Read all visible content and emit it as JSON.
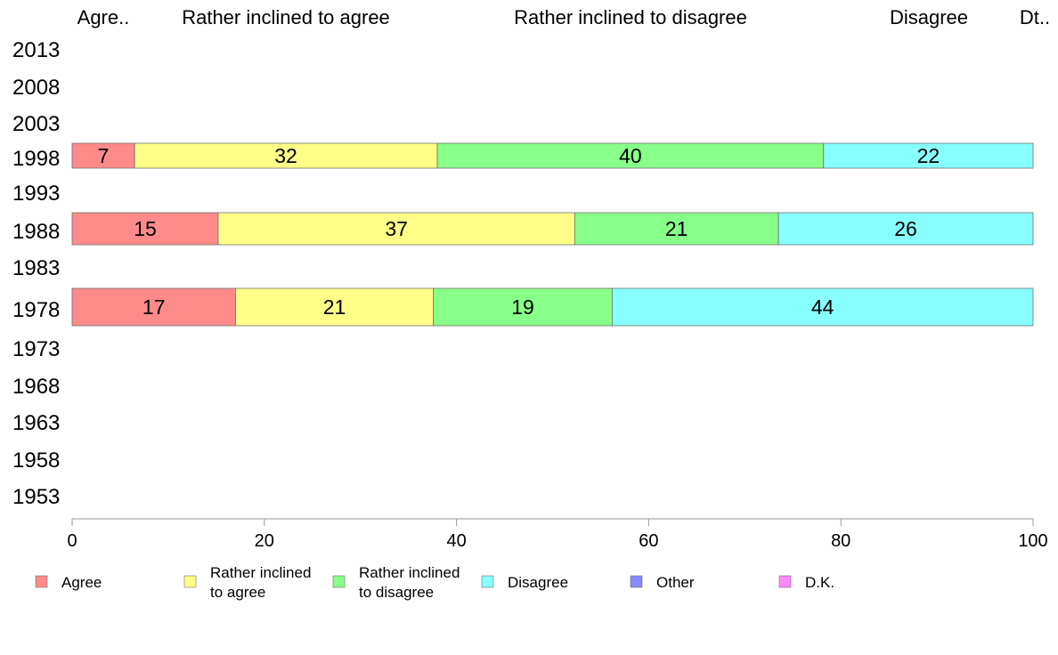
{
  "chart_data": {
    "type": "bar",
    "orientation": "horizontal",
    "stacked": true,
    "top_labels": [
      "Agre..",
      "Rather inclined to agree",
      "Rather inclined to disagree",
      "Disagree",
      "Dt.."
    ],
    "years": [
      "2013",
      "2008",
      "2003",
      "1998",
      "1993",
      "1988",
      "1983",
      "1978",
      "1973",
      "1968",
      "1963",
      "1958",
      "1953"
    ],
    "series": [
      {
        "name": "Agree",
        "color": "#ff8a8a"
      },
      {
        "name": "Rather inclined to agree",
        "color": "#ffff88"
      },
      {
        "name": "Rather inclined to disagree",
        "color": "#88ff88"
      },
      {
        "name": "Disagree",
        "color": "#88ffff"
      },
      {
        "name": "Other",
        "color": "#8888ff"
      },
      {
        "name": "D.K.",
        "color": "#ff88ff"
      }
    ],
    "bars": [
      {
        "year": "1998",
        "values": [
          6.5,
          31.5,
          40.2,
          21.8
        ],
        "labels": [
          "7",
          "32",
          "40",
          "22"
        ]
      },
      {
        "year": "1988",
        "values": [
          15.2,
          37.1,
          21.2,
          26.5
        ],
        "labels": [
          "15",
          "37",
          "21",
          "26"
        ]
      },
      {
        "year": "1978",
        "values": [
          17.0,
          20.6,
          18.6,
          43.8
        ],
        "labels": [
          "17",
          "21",
          "19",
          "44"
        ]
      }
    ],
    "xlim": [
      0,
      100
    ],
    "xticks": [
      0,
      20,
      40,
      60,
      80,
      100
    ],
    "legend": [
      {
        "lines": [
          "Agree"
        ]
      },
      {
        "lines": [
          "Rather inclined",
          "to agree"
        ]
      },
      {
        "lines": [
          "Rather inclined",
          "to disagree"
        ]
      },
      {
        "lines": [
          "Disagree"
        ]
      },
      {
        "lines": [
          "Other"
        ]
      },
      {
        "lines": [
          "D.K."
        ]
      }
    ],
    "legend_position": "bottom"
  }
}
